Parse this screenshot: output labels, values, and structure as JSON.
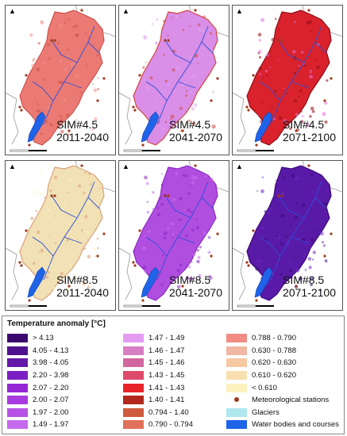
{
  "panels": [
    {
      "id": "p1",
      "scenario": "SIM#4.5",
      "period": "2011-2040",
      "fill": "#ec7a74",
      "stroke": "#c9524c",
      "accent": "#f29088"
    },
    {
      "id": "p2",
      "scenario": "SIM#4.5",
      "period": "2041-2070",
      "fill": "#d98ee8",
      "stroke": "#d4463c",
      "accent": "#e0a3ec"
    },
    {
      "id": "p3",
      "scenario": "SIM#4.5",
      "period": "2071-2100",
      "fill": "#d9222c",
      "stroke": "#8e0f16",
      "accent": "#e86fd8"
    },
    {
      "id": "p4",
      "scenario": "SIM#8.5",
      "period": "2011-2040",
      "fill": "#f1e1b4",
      "stroke": "#dca07c",
      "accent": "#fbf3c0"
    },
    {
      "id": "p5",
      "scenario": "SIM#8.5",
      "period": "2041-2070",
      "fill": "#b04ee0",
      "stroke": "#8a2ac2",
      "accent": "#c870ec"
    },
    {
      "id": "p6",
      "scenario": "SIM#8.5",
      "period": "2071-2100",
      "fill": "#5a1aa8",
      "stroke": "#3a0b78",
      "accent": "#6e2ac0"
    }
  ],
  "legend": {
    "title": "Temperature anomaly [°C]",
    "columns": [
      [
        {
          "label": "> 4.13",
          "color": "#3c0a6e"
        },
        {
          "label": "4.05 - 4.13",
          "color": "#4f128e"
        },
        {
          "label": "3.98 - 4.05",
          "color": "#6418a8"
        },
        {
          "label": "2.20 - 3.98",
          "color": "#7c1fc2"
        },
        {
          "label": "2.07 - 2.20",
          "color": "#9426d6"
        },
        {
          "label": "2.00 - 2.07",
          "color": "#a83ce0"
        },
        {
          "label": "1.97 - 2.00",
          "color": "#b652e6"
        },
        {
          "label": "1.49 - 1.97",
          "color": "#c46aec"
        }
      ],
      [
        {
          "label": "1.47 - 1.49",
          "color": "#e49cf2"
        },
        {
          "label": "1.46 - 1.47",
          "color": "#d87ec2"
        },
        {
          "label": "1.45 - 1.46",
          "color": "#d2669e"
        },
        {
          "label": "1.43 - 1.45",
          "color": "#de4a6a"
        },
        {
          "label": "1.41 - 1.43",
          "color": "#e8242a"
        },
        {
          "label": "1.40 - 1.41",
          "color": "#b2281e"
        },
        {
          "label": "0.794 - 1.40",
          "color": "#cf5a3e"
        },
        {
          "label": "0.790 - 0.794",
          "color": "#e0715a"
        }
      ],
      [
        {
          "label": "0.788 - 0.790",
          "color": "#f08c84",
          "kind": "swatch"
        },
        {
          "label": "0.630 - 0.788",
          "color": "#f2b7a2",
          "kind": "swatch"
        },
        {
          "label": "0.620 - 0.630",
          "color": "#f6c9a2",
          "kind": "swatch"
        },
        {
          "label": "0.610 - 0.620",
          "color": "#f8dfb0",
          "kind": "swatch"
        },
        {
          "label": "< 0.610",
          "color": "#fbf2c0",
          "kind": "swatch"
        },
        {
          "label": "Meteorological stations",
          "color": "#a0381a",
          "kind": "dot"
        },
        {
          "label": "Glaciers",
          "color": "#aee8ee",
          "kind": "swatch"
        },
        {
          "label": "Water bodies and courses",
          "color": "#1f63e8",
          "kind": "swatch"
        }
      ]
    ]
  }
}
